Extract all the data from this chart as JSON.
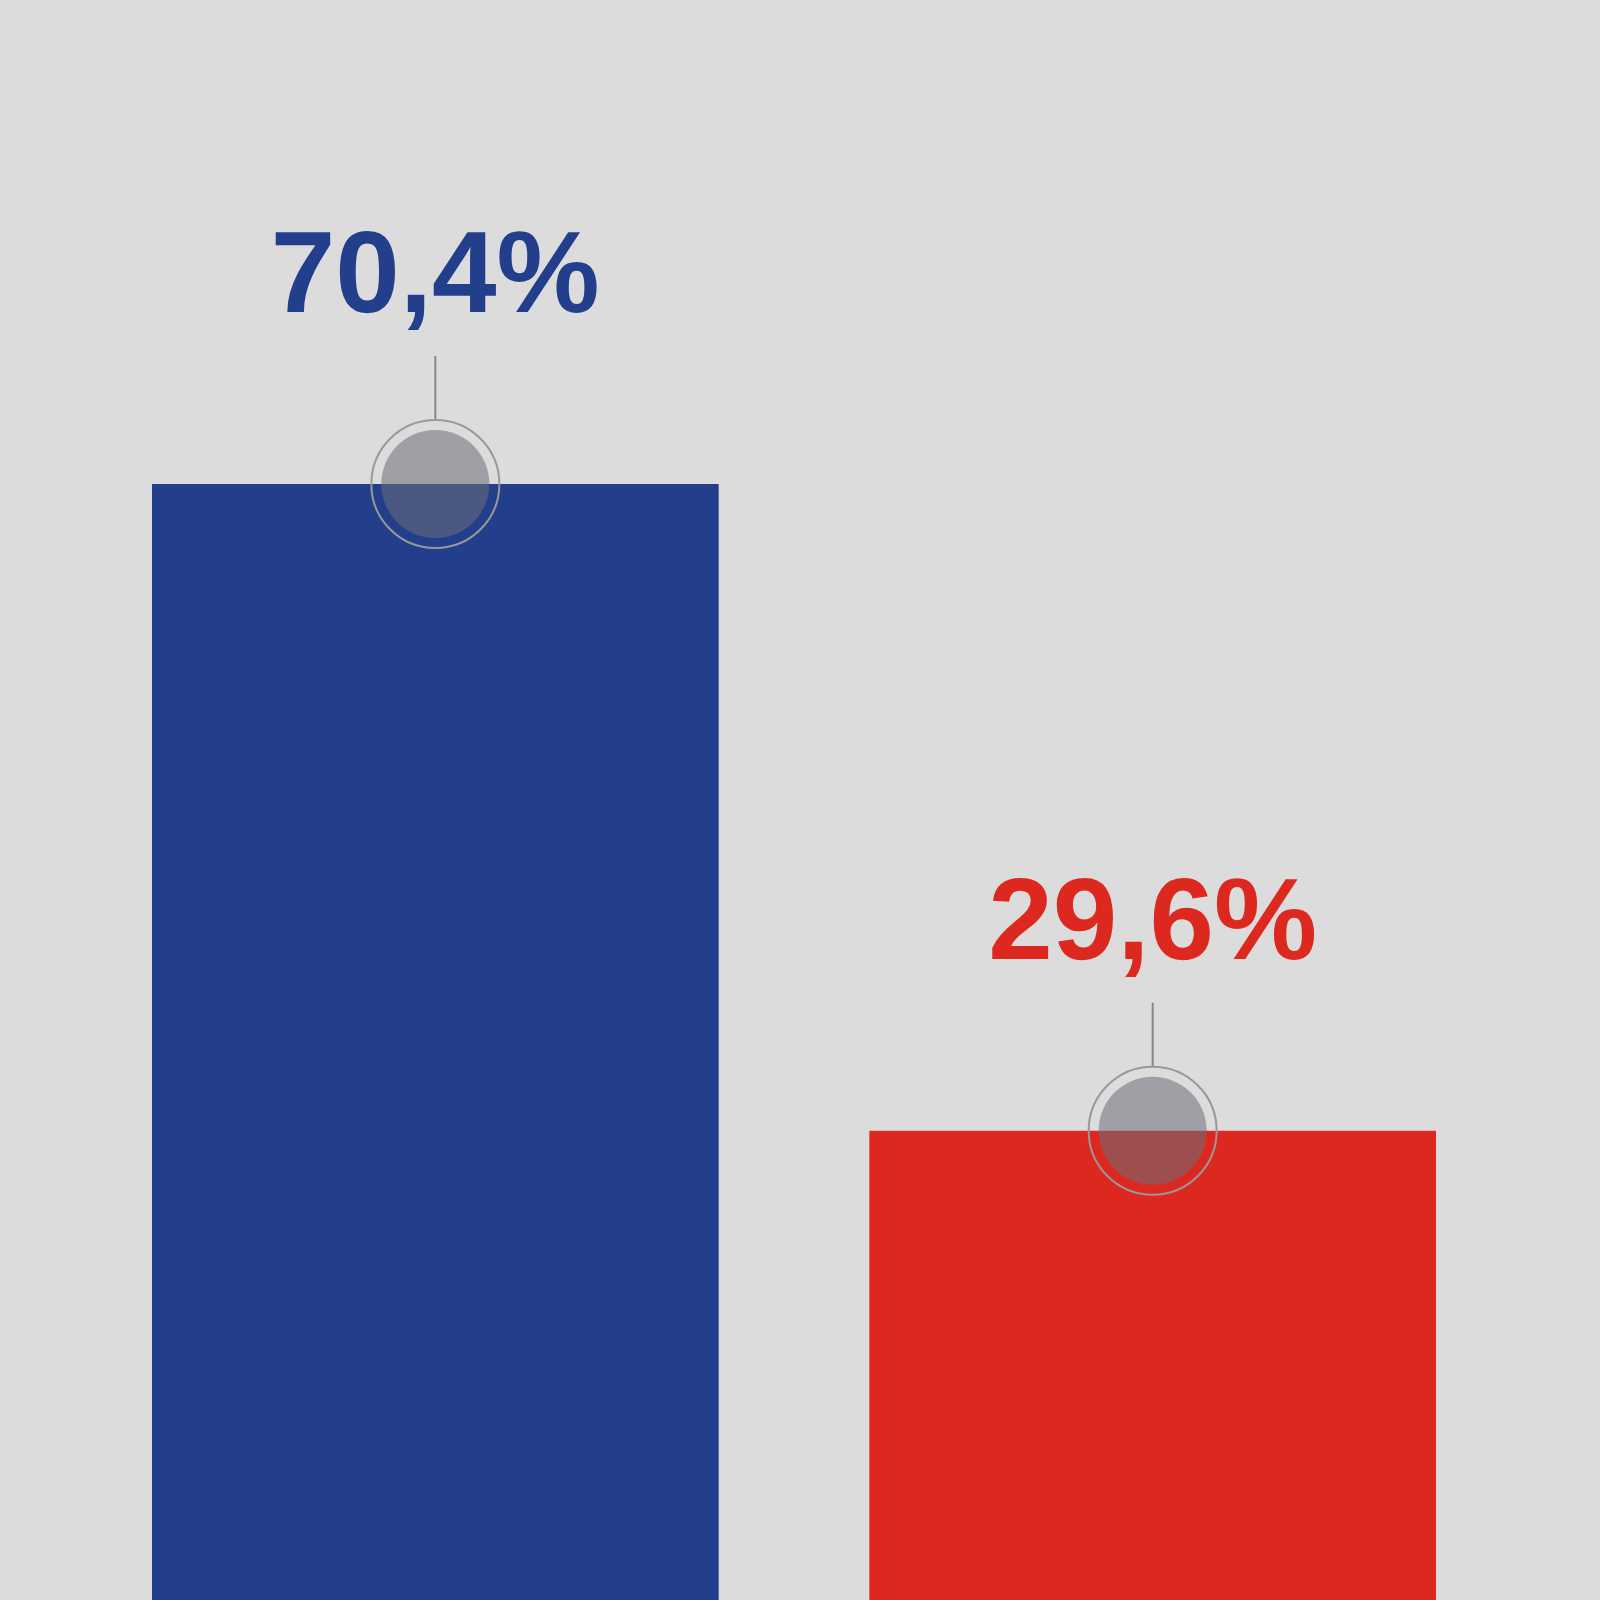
{
  "chart_data": {
    "type": "bar",
    "categories": [
      null,
      null
    ],
    "values": [
      70.4,
      29.6
    ],
    "colors": [
      "#233f8c",
      "#dc281e"
    ],
    "value_labels": [
      "70,4%",
      "29,6%"
    ]
  }
}
